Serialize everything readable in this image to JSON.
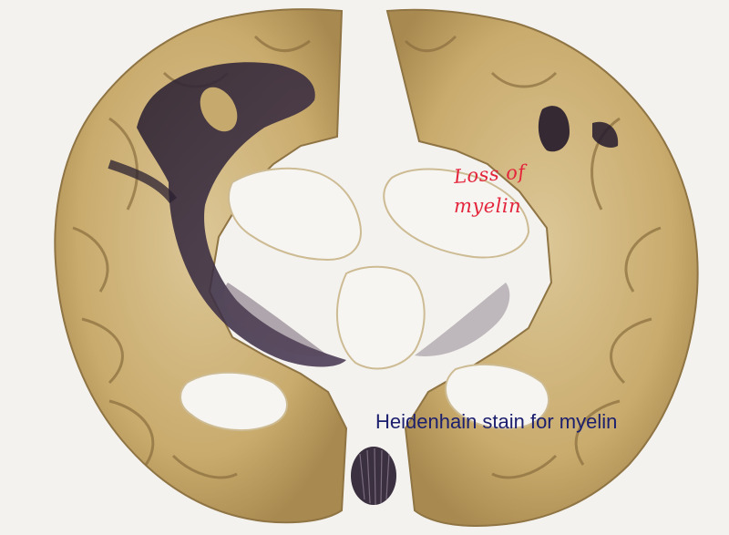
{
  "image": {
    "subject": "coronal brain section",
    "colors": {
      "background": "#f5f3ef",
      "tissue": "#c8aa6e",
      "tissue_light": "#e2cfa0",
      "myelin_stain": "#1e1824",
      "ventricle": "#f7f5f1"
    }
  },
  "annotations": {
    "loss_label_line1": "Loss of",
    "loss_label_line2": "myelin",
    "stain_caption": "Heidenhain stain for myelin"
  }
}
